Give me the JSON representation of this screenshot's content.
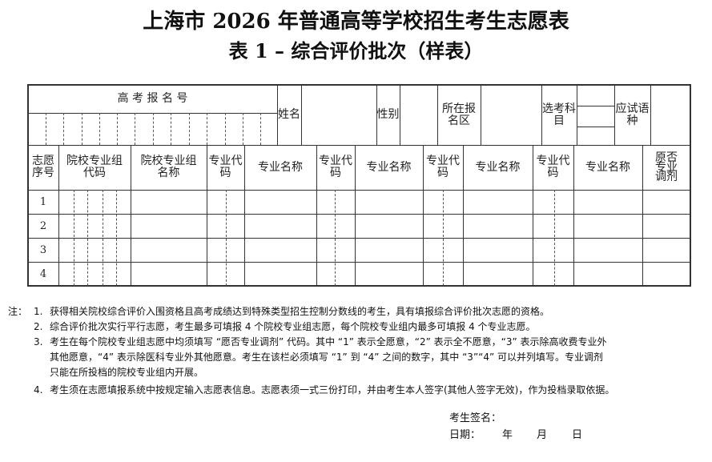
{
  "title": "上海市 2026 年普通高等学校招生考生志愿表",
  "subtitle": "表 1 –  综合评价批次（样表）",
  "header": {
    "exam_number_label": "高 考 报 名 号",
    "name_label": "姓名",
    "gender_label": "性别",
    "district_label": "所在报名区",
    "subjects_label": "选考科目",
    "language_label": "应试语种"
  },
  "columns": {
    "seq": "志愿序号",
    "group_code": "院校专业组代码",
    "group_name": "院校专业组名称",
    "major_code": "专业代码",
    "major_name": "专业名称",
    "adjust": "原否专业调剂"
  },
  "rows": [
    "1",
    "2",
    "3",
    "4"
  ],
  "notes": {
    "prefix": "注：",
    "items": [
      {
        "num": "1.",
        "lines": [
          "获得相关院校综合评价入围资格且高考成绩达到特殊类型招生控制分数线的考生，具有填报综合评价批次志愿的资格。"
        ]
      },
      {
        "num": "2.",
        "lines": [
          "综合评价批次实行平行志愿，考生最多可填报 4 个院校专业组志愿，每个院校专业组内最多可填报 4 个专业志愿。"
        ]
      },
      {
        "num": "3.",
        "lines": [
          "考生在每个院校专业组志愿中均须填写 “愿否专业调剂” 代码。其中 “1” 表示全愿意，“2” 表示全不愿意，“3” 表示除高收费专业外",
          "其他愿意，“4” 表示除医科专业外其他愿意。考生在该栏必须填写 “1” 到 “4” 之间的数字，其中 “3”“4” 可以并列填写。专业调剂",
          "只能在所投档的院校专业组内开展。"
        ]
      },
      {
        "num": "4.",
        "lines": [
          "考生须在志愿填报系统中按规定输入志愿表信息。志愿表须一式三份打印，并由考生本人签字(其他人签字无效)，作为投档录取依据。"
        ]
      }
    ]
  },
  "signature": {
    "label": "考生签名：",
    "date_label": "日期：",
    "year": "年",
    "month": "月",
    "day": "日"
  }
}
